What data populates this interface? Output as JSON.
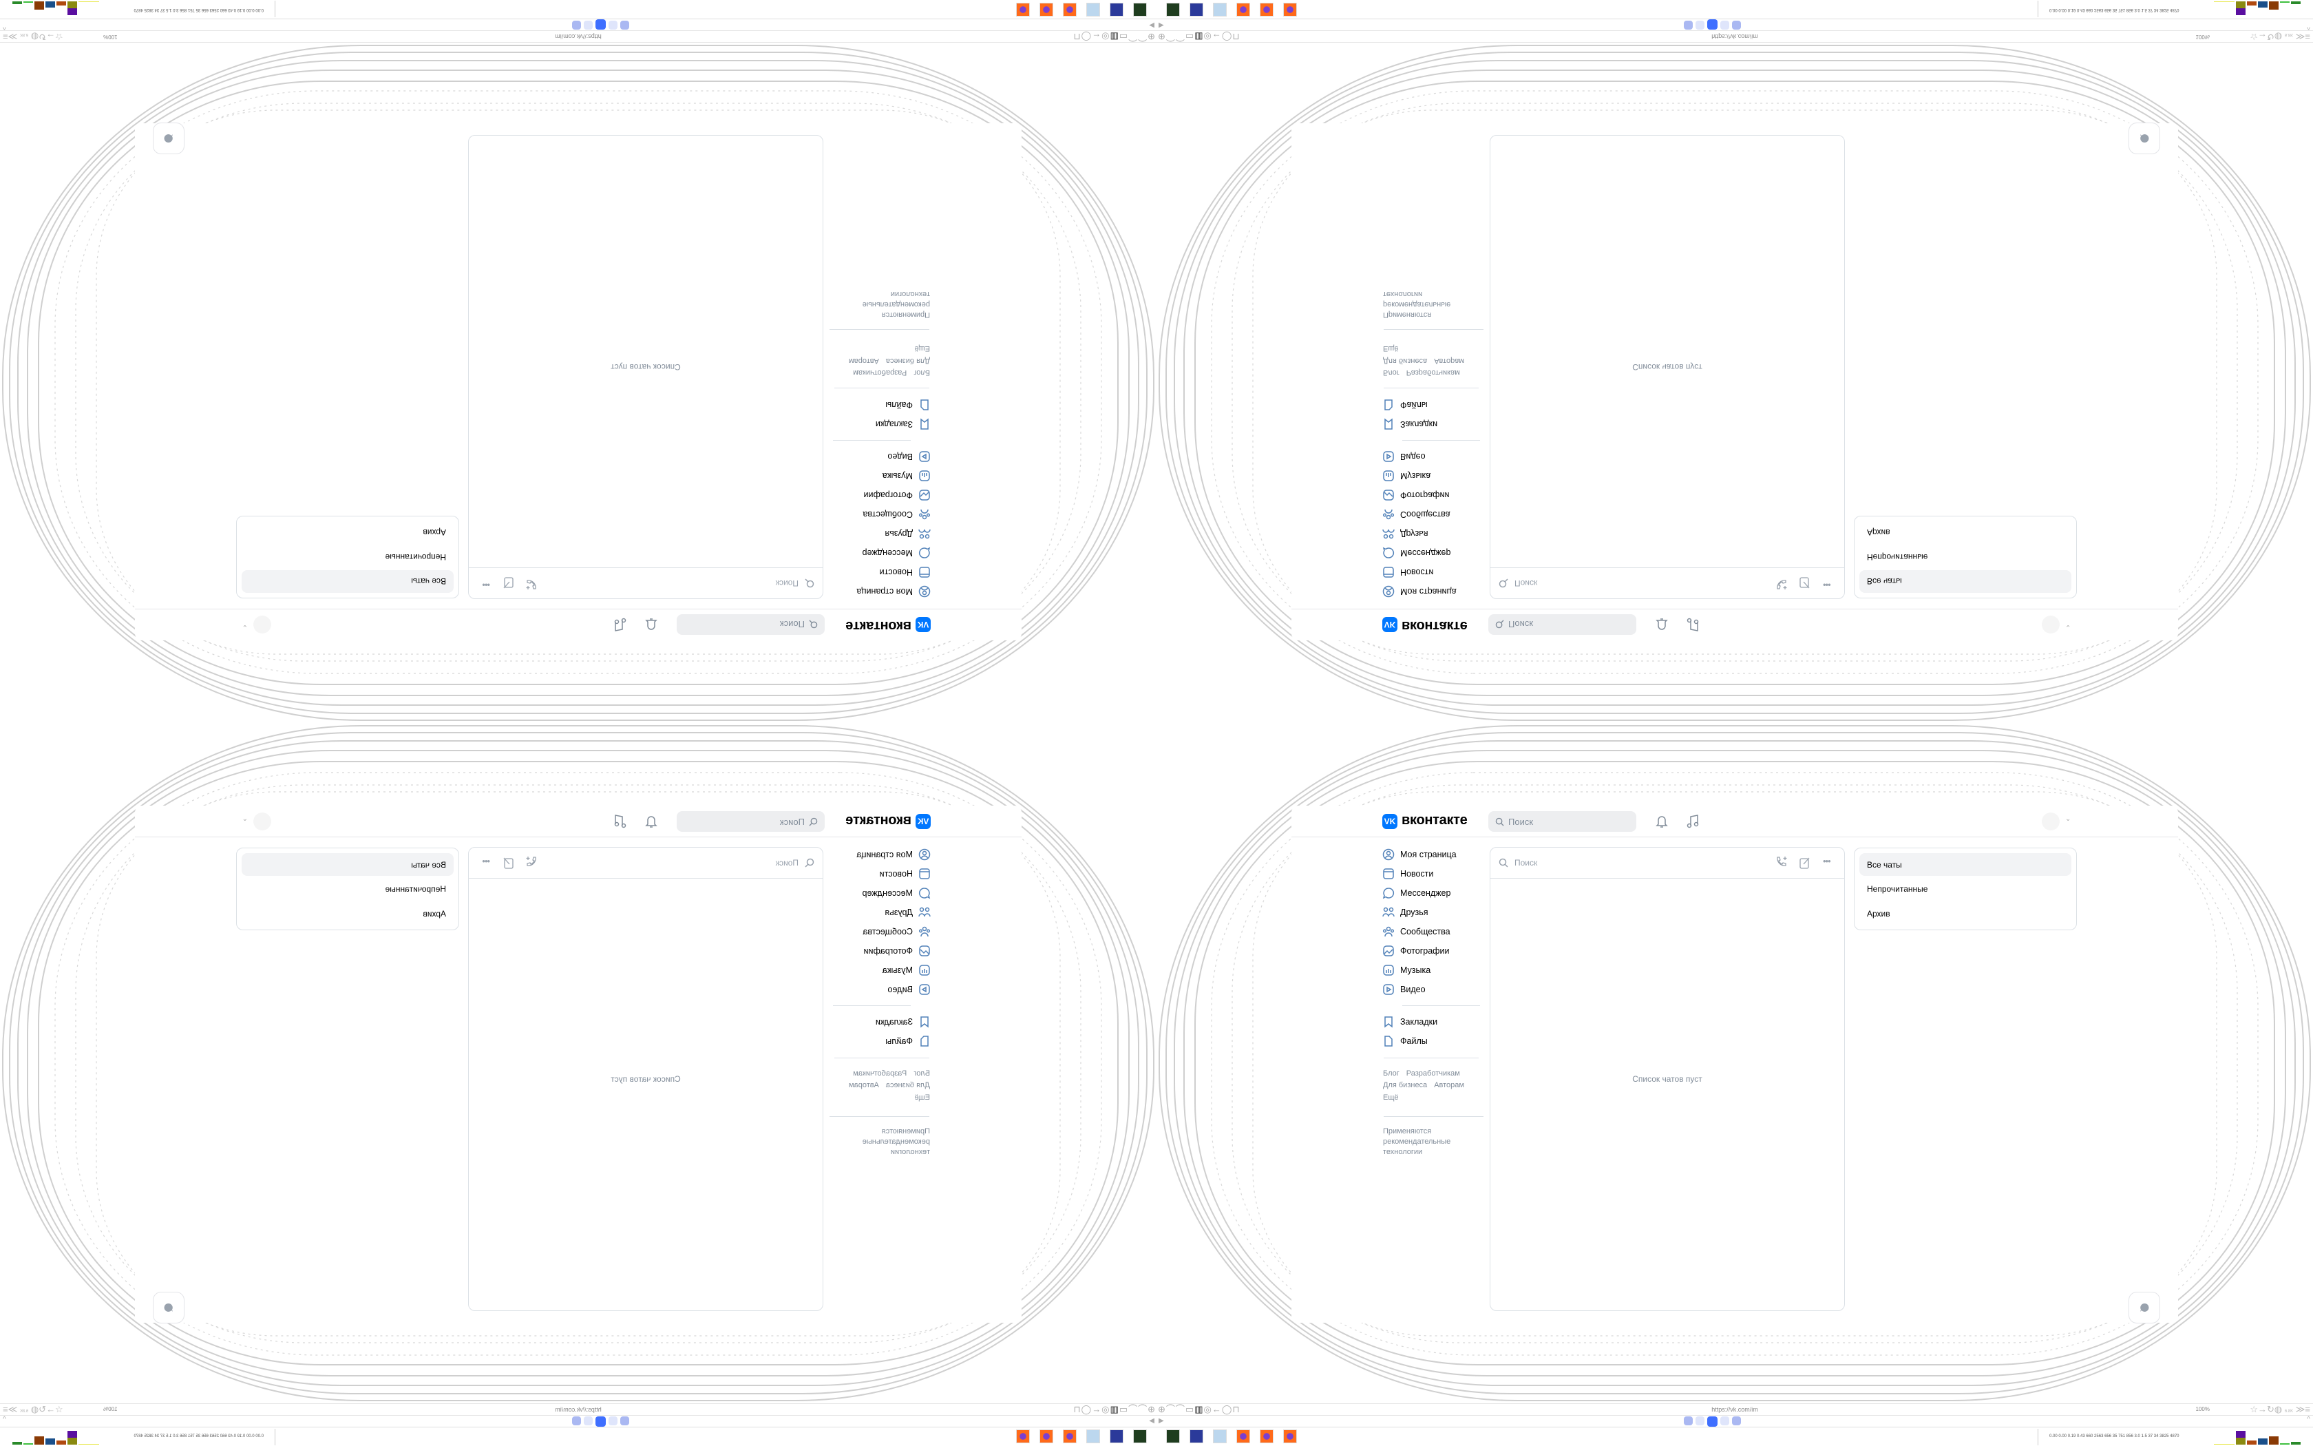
{
  "header": {
    "logo_text": "вконтакте",
    "search_placeholder": "Поиск",
    "icons": [
      "bell-icon",
      "music-icon",
      "avatar",
      "chevron-down-icon"
    ]
  },
  "sidebar": {
    "items": [
      {
        "label": "Моя страница",
        "icon": "user-circle-icon"
      },
      {
        "label": "Новости",
        "icon": "news-icon"
      },
      {
        "label": "Мессенджер",
        "icon": "message-icon"
      },
      {
        "label": "Друзья",
        "icon": "friends-icon"
      },
      {
        "label": "Сообщества",
        "icon": "communities-icon"
      },
      {
        "label": "Фотографии",
        "icon": "photo-icon"
      },
      {
        "label": "Музыка",
        "icon": "music-icon"
      },
      {
        "label": "Видео",
        "icon": "video-icon"
      }
    ],
    "secondary": [
      {
        "label": "Закладки",
        "icon": "bookmark-icon"
      },
      {
        "label": "Файлы",
        "icon": "file-icon"
      }
    ],
    "footer_links": [
      "Блог",
      "Разработчикам",
      "Для бизнеса",
      "Авторам",
      "Ещё"
    ],
    "tech_note": [
      "Применяются",
      "рекомендательные",
      "технологии"
    ]
  },
  "chat_list": {
    "search_placeholder": "Поиск",
    "empty_text": "Список чатов пуст",
    "actions": [
      "call-add-icon",
      "compose-icon",
      "more-icon"
    ]
  },
  "filters": {
    "items": [
      "Все чаты",
      "Непрочитанные",
      "Архив"
    ],
    "selected": 0
  },
  "browser": {
    "url": "https://vk.com/im",
    "zoom": "100%",
    "badge": "6.8K"
  },
  "taskbar": {
    "apps": [
      "terminal-icon",
      "floppy-64-icon",
      "notepad-icon",
      "firefox-icon",
      "firefox-icon",
      "firefox-icon"
    ],
    "tray_stats": "0.00 0.00 0.19 0.43 660 2563 656 35 751 856 3.0 1.5 37 34 3825 4870"
  },
  "colors": {
    "accent": "#0077ff",
    "muted_text": "#818c99",
    "border": "#dce1e6",
    "ornament": "#c8c8c8"
  }
}
